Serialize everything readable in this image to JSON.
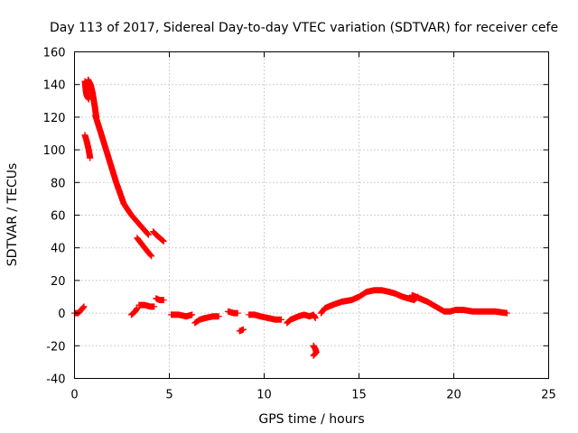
{
  "chart_data": {
    "type": "scatter",
    "title": "Day 113 of 2017, Sidereal Day-to-day VTEC variation (SDTVAR) for receiver cefe",
    "xlabel": "GPS time / hours",
    "ylabel": "SDTVAR / TECUs",
    "xlim": [
      0,
      25
    ],
    "ylim": [
      -40,
      160
    ],
    "xticks": [
      0,
      5,
      10,
      15,
      20,
      25
    ],
    "yticks": [
      -40,
      -20,
      0,
      20,
      40,
      60,
      80,
      100,
      120,
      140,
      160
    ],
    "grid": true,
    "marker": "+",
    "series": [
      {
        "name": "SDTVAR",
        "color": "#ff0000",
        "segments": [
          [
            [
              0.0,
              0
            ],
            [
              0.2,
              0
            ],
            [
              0.35,
              2
            ],
            [
              0.5,
              4
            ]
          ],
          [
            [
              0.55,
              142
            ],
            [
              0.6,
              136
            ],
            [
              0.65,
              133
            ],
            [
              0.75,
              131
            ]
          ],
          [
            [
              0.55,
              109
            ],
            [
              0.65,
              105
            ],
            [
              0.75,
              100
            ],
            [
              0.82,
              95
            ]
          ],
          [
            [
              0.72,
              143
            ],
            [
              0.85,
              140
            ],
            [
              0.95,
              135
            ],
            [
              1.05,
              128
            ],
            [
              1.15,
              120
            ]
          ],
          [
            [
              1.1,
              121
            ],
            [
              1.4,
              110
            ],
            [
              1.8,
              95
            ],
            [
              2.2,
              80
            ],
            [
              2.6,
              67
            ],
            [
              3.0,
              60
            ],
            [
              3.3,
              56
            ],
            [
              3.6,
              52
            ],
            [
              3.9,
              48
            ]
          ],
          [
            [
              3.3,
              46
            ],
            [
              3.5,
              43
            ],
            [
              3.7,
              40
            ],
            [
              3.9,
              37
            ],
            [
              4.05,
              35
            ]
          ],
          [
            [
              4.15,
              50
            ],
            [
              4.3,
              48
            ],
            [
              4.5,
              46
            ],
            [
              4.7,
              44
            ]
          ],
          [
            [
              3.0,
              -1
            ],
            [
              3.2,
              1
            ],
            [
              3.3,
              3
            ]
          ],
          [
            [
              3.4,
              5
            ],
            [
              3.7,
              5
            ],
            [
              4.0,
              4
            ],
            [
              4.2,
              4
            ]
          ],
          [
            [
              4.3,
              9
            ],
            [
              4.5,
              8
            ],
            [
              4.7,
              8
            ]
          ],
          [
            [
              5.1,
              -1
            ],
            [
              5.5,
              -1
            ],
            [
              5.9,
              -2
            ],
            [
              6.2,
              -1
            ]
          ],
          [
            [
              6.35,
              -6
            ],
            [
              6.6,
              -4
            ],
            [
              6.9,
              -3
            ],
            [
              7.3,
              -2
            ],
            [
              7.6,
              -2
            ]
          ],
          [
            [
              8.1,
              1
            ],
            [
              8.4,
              0
            ],
            [
              8.6,
              0
            ]
          ],
          [
            [
              8.7,
              -11
            ],
            [
              8.9,
              -10
            ]
          ],
          [
            [
              9.2,
              -1
            ],
            [
              9.5,
              -1
            ],
            [
              9.8,
              -2
            ],
            [
              10.2,
              -3
            ],
            [
              10.6,
              -4
            ],
            [
              10.9,
              -4
            ]
          ],
          [
            [
              11.2,
              -6
            ],
            [
              11.4,
              -4
            ],
            [
              11.6,
              -3
            ],
            [
              11.8,
              -2
            ],
            [
              12.1,
              -1
            ],
            [
              12.4,
              -2
            ],
            [
              12.6,
              -1
            ],
            [
              12.7,
              -3
            ]
          ],
          [
            [
              12.6,
              -20
            ],
            [
              12.7,
              -22
            ],
            [
              12.75,
              -24
            ],
            [
              12.6,
              -26
            ]
          ],
          [
            [
              13.0,
              0
            ],
            [
              13.2,
              3
            ],
            [
              13.6,
              5
            ],
            [
              14.1,
              7
            ],
            [
              14.6,
              8
            ],
            [
              15.0,
              10
            ],
            [
              15.4,
              13
            ],
            [
              15.8,
              14
            ],
            [
              16.2,
              14
            ],
            [
              16.6,
              13
            ],
            [
              16.9,
              12
            ],
            [
              17.3,
              10
            ],
            [
              17.6,
              9
            ],
            [
              17.9,
              8
            ],
            [
              18.1,
              10
            ]
          ],
          [
            [
              17.8,
              11
            ],
            [
              18.2,
              9
            ],
            [
              18.6,
              7
            ],
            [
              18.9,
              5
            ],
            [
              19.2,
              3
            ],
            [
              19.5,
              1
            ],
            [
              19.8,
              1
            ],
            [
              20.1,
              2
            ],
            [
              20.5,
              2
            ],
            [
              21.0,
              1
            ],
            [
              21.6,
              1
            ],
            [
              22.2,
              1
            ],
            [
              22.8,
              0
            ]
          ]
        ]
      }
    ]
  }
}
